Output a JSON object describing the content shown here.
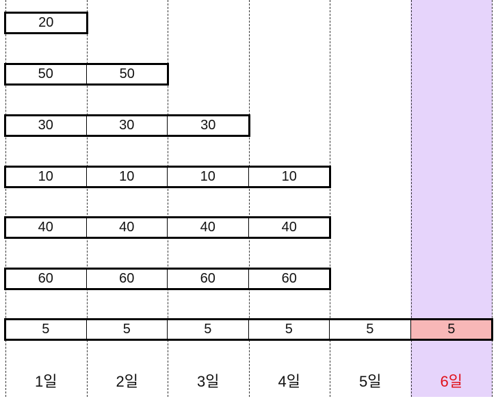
{
  "highlight_color": "#e6d4fb",
  "highlight_cell_color": "#f8b7b7",
  "highlight_label_color": "#e0101a",
  "days": [
    "1일",
    "2일",
    "3일",
    "4일",
    "5일",
    "6일"
  ],
  "highlight_day_index": 5,
  "rows": [
    {
      "value": "20",
      "length": 1
    },
    {
      "value": "50",
      "length": 2
    },
    {
      "value": "30",
      "length": 3
    },
    {
      "value": "10",
      "length": 4
    },
    {
      "value": "40",
      "length": 4
    },
    {
      "value": "60",
      "length": 4
    },
    {
      "value": "5",
      "length": 6
    }
  ]
}
